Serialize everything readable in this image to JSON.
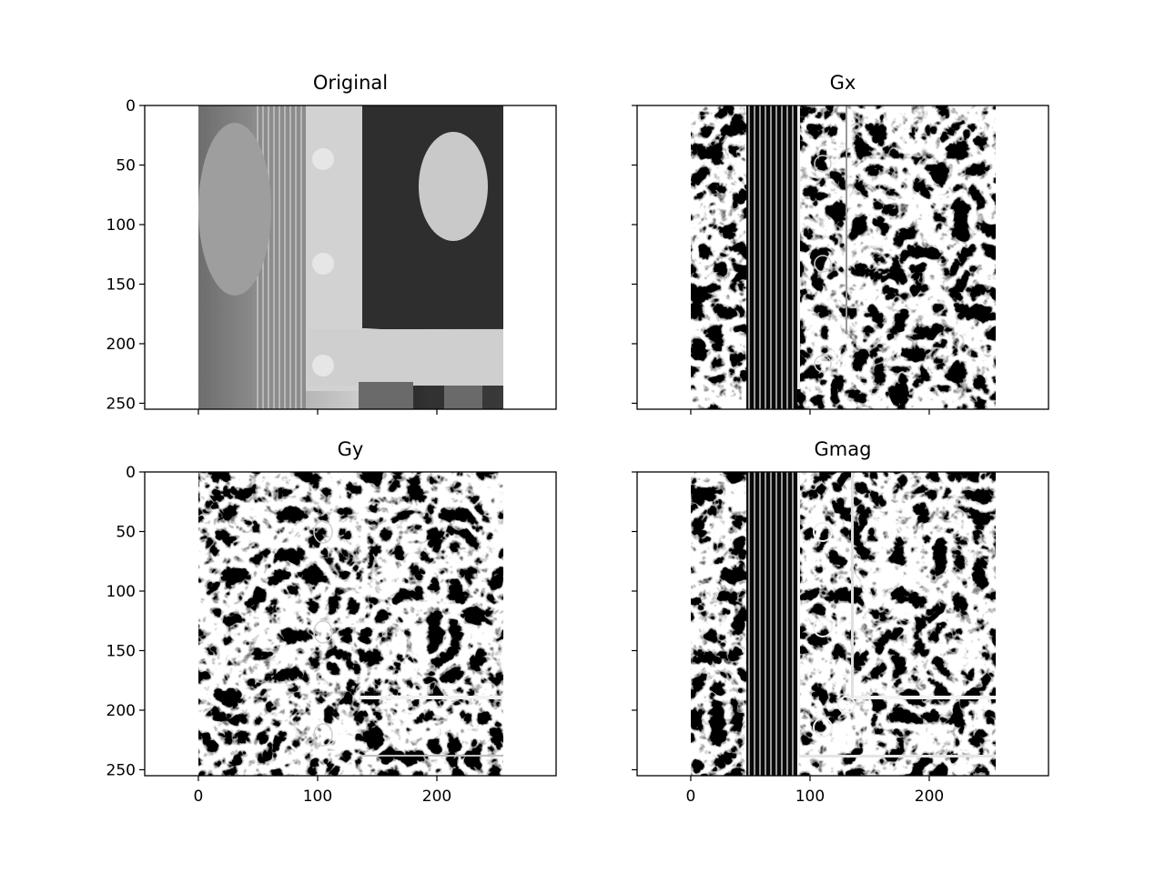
{
  "figure": {
    "background": "#ffffff",
    "axes_color": "#000000",
    "image_colormap": "gray"
  },
  "chart_data": [
    {
      "type": "heatmap",
      "title": "Original",
      "image_description_kind": "grayscale photograph",
      "xlim": [
        -45,
        300
      ],
      "ylim": [
        255,
        0
      ],
      "image_extent": {
        "x": [
          0,
          256
        ],
        "y": [
          0,
          256
        ]
      },
      "yticks": [
        0,
        50,
        100,
        150,
        200,
        250
      ],
      "xticks": [
        0,
        100,
        200
      ],
      "show_xtick_labels": false,
      "show_ytick_labels": true
    },
    {
      "type": "heatmap",
      "title": "Gx",
      "image_description_kind": "horizontal gradient",
      "xlim": [
        -45,
        300
      ],
      "ylim": [
        255,
        0
      ],
      "image_extent": {
        "x": [
          0,
          256
        ],
        "y": [
          0,
          256
        ]
      },
      "yticks": [
        0,
        50,
        100,
        150,
        200,
        250
      ],
      "xticks": [
        0,
        100,
        200
      ],
      "show_xtick_labels": false,
      "show_ytick_labels": false
    },
    {
      "type": "heatmap",
      "title": "Gy",
      "image_description_kind": "vertical gradient",
      "xlim": [
        -45,
        300
      ],
      "ylim": [
        255,
        0
      ],
      "image_extent": {
        "x": [
          0,
          256
        ],
        "y": [
          0,
          256
        ]
      },
      "yticks": [
        0,
        50,
        100,
        150,
        200,
        250
      ],
      "xticks": [
        0,
        100,
        200
      ],
      "show_xtick_labels": true,
      "show_ytick_labels": true
    },
    {
      "type": "heatmap",
      "title": "Gmag",
      "image_description_kind": "gradient magnitude",
      "xlim": [
        -45,
        300
      ],
      "ylim": [
        255,
        0
      ],
      "image_extent": {
        "x": [
          0,
          256
        ],
        "y": [
          0,
          256
        ]
      },
      "yticks": [
        0,
        50,
        100,
        150,
        200,
        250
      ],
      "xticks": [
        0,
        100,
        200
      ],
      "show_xtick_labels": true,
      "show_ytick_labels": false
    }
  ]
}
